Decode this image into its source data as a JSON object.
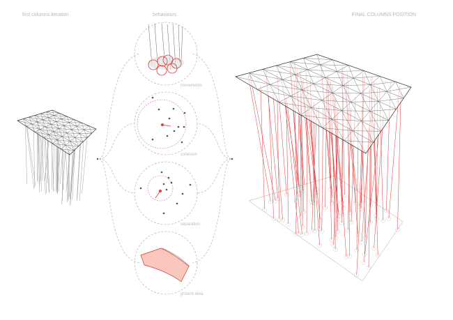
{
  "titles": {
    "first": "first columns iteration",
    "behaviours": "behaviours",
    "final": "FINAL COLUMNS POSITION"
  },
  "behaviours": [
    {
      "label": "movements"
    },
    {
      "label": "cohesion"
    },
    {
      "label": "separation"
    },
    {
      "label": "ground area"
    }
  ],
  "colors": {
    "accent": "#e23a3a",
    "range": "#d86ad8",
    "ground_fill": "#f9c7bb",
    "structure": "#333333",
    "labels": "#b8b8b8"
  }
}
